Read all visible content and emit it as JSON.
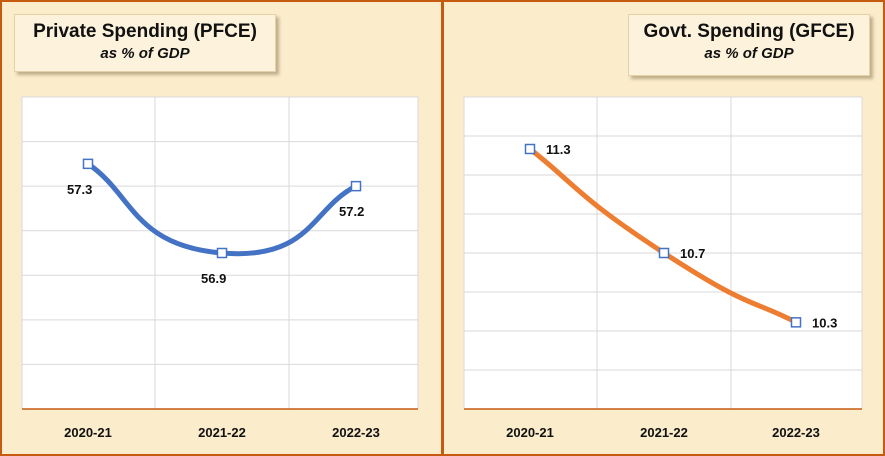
{
  "colors": {
    "pfce_line": "#4472c4",
    "gfce_line": "#ed7d31",
    "axis": "#c55a11",
    "grid": "#d9d9d9"
  },
  "chart_data": [
    {
      "type": "line",
      "title": "Private Spending (PFCE)",
      "subtitle": "as % of GDP",
      "categories": [
        "2020-21",
        "2021-22",
        "2022-23"
      ],
      "series": [
        {
          "name": "PFCE",
          "values": [
            57.3,
            56.9,
            57.2
          ]
        }
      ],
      "data_labels": [
        "57.3",
        "56.9",
        "57.2"
      ],
      "xlabel": "",
      "ylabel": "",
      "ylim": [
        56.2,
        57.6
      ],
      "grid": true,
      "legend": "none"
    },
    {
      "type": "line",
      "title": "Govt. Spending (GFCE)",
      "subtitle": "as % of GDP",
      "categories": [
        "2020-21",
        "2021-22",
        "2022-23"
      ],
      "series": [
        {
          "name": "GFCE",
          "values": [
            11.3,
            10.7,
            10.3
          ]
        }
      ],
      "data_labels": [
        "11.3",
        "10.7",
        "10.3"
      ],
      "xlabel": "",
      "ylabel": "",
      "ylim": [
        9.8,
        11.6
      ],
      "grid": true,
      "legend": "none"
    }
  ]
}
